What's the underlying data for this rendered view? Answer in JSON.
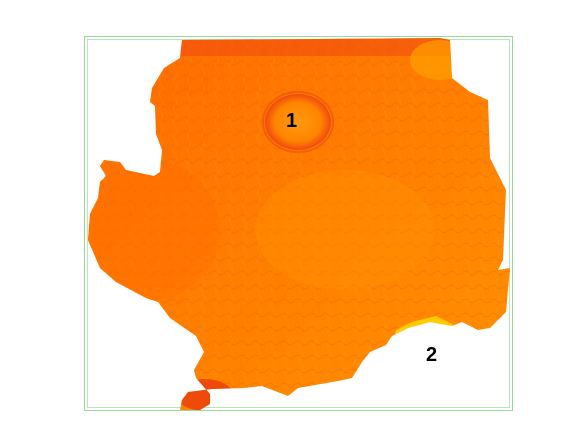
{
  "map": {
    "frame_color": "#9ad89a",
    "colors": {
      "terrain_light": "#ff9a00",
      "terrain_mid": "#ff7a00",
      "terrain_dark": "#f25a0a",
      "ridge_red": "#e63c12",
      "low_yellow": "#ffd800",
      "water_light": "#4fd6e6",
      "water_mid": "#1f8ee8",
      "water_deep": "#0b1fb8"
    },
    "markers": [
      {
        "id": "1",
        "label": "1",
        "feature": "circular-crater-highland"
      },
      {
        "id": "2",
        "label": "2",
        "feature": "lowland-water-basin"
      }
    ]
  }
}
